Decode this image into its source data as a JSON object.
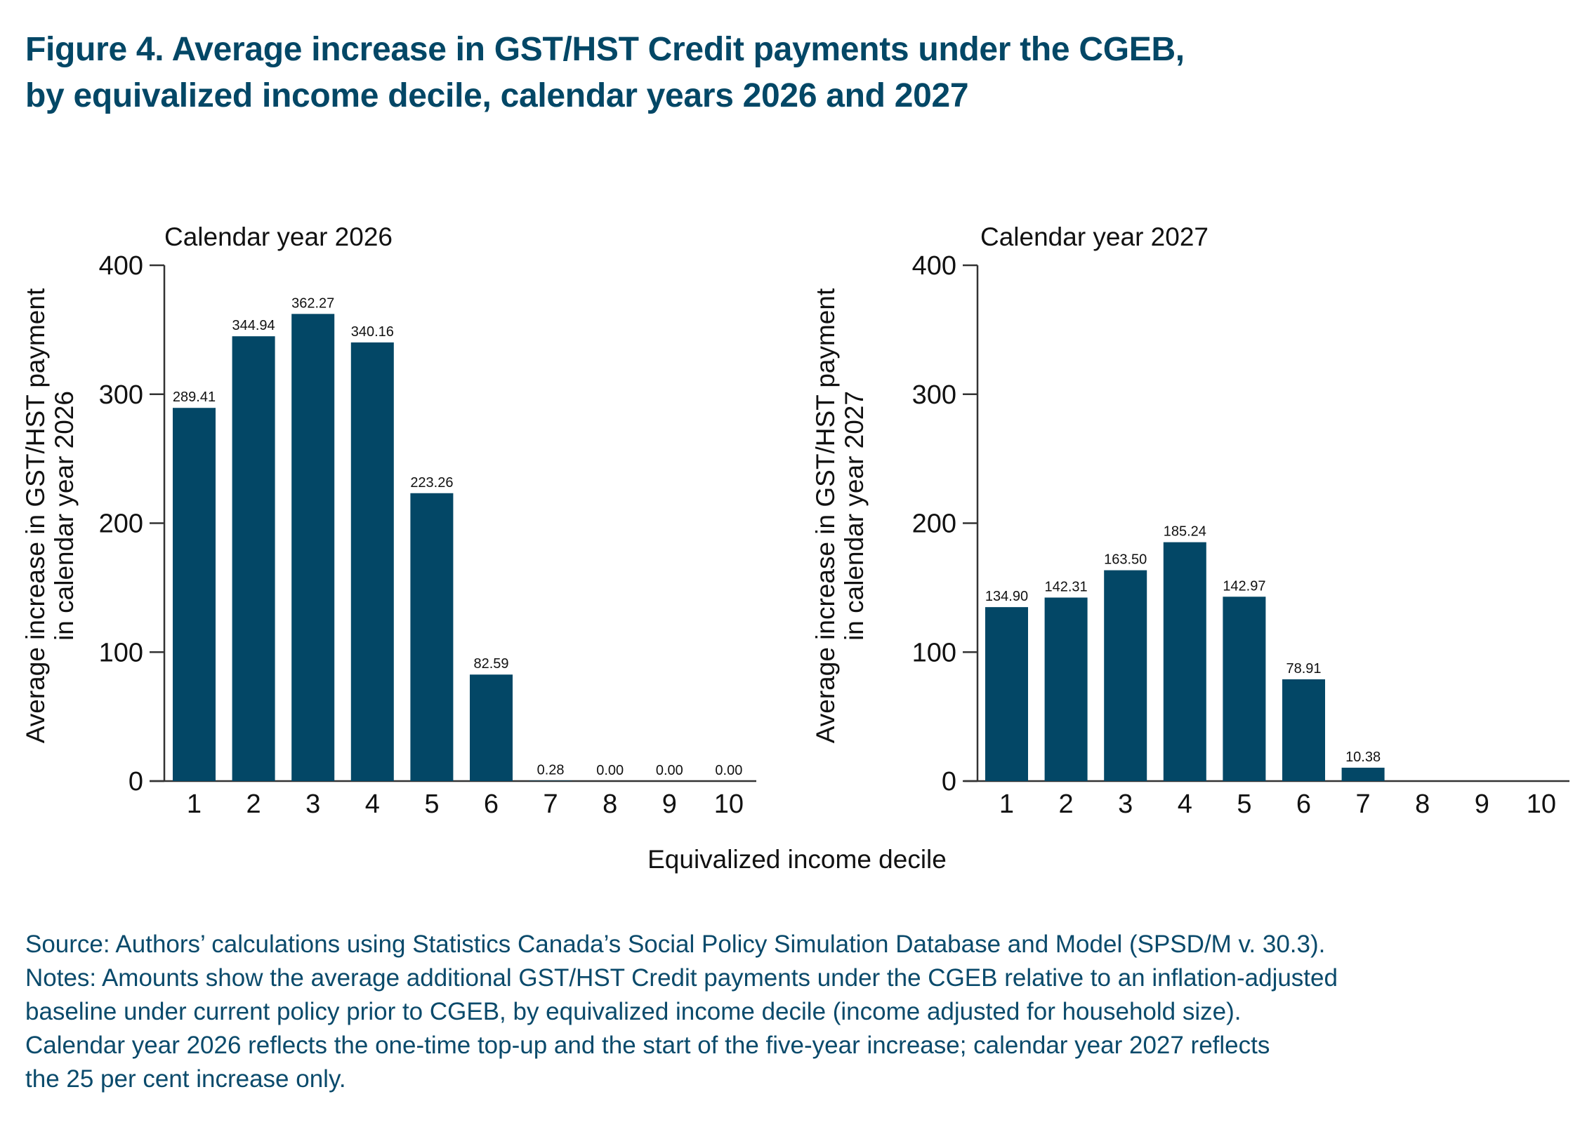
{
  "title": {
    "line1": "Figure 4. Average increase in GST/HST Credit payments under the CGEB,",
    "line2": "by equivalized income decile, calendar years 2026 and 2027"
  },
  "colors": {
    "bar": "#034766",
    "title": "#034766",
    "axis": "#333333",
    "notes": "#0a4a6b"
  },
  "chart_data": [
    {
      "type": "bar",
      "title": "Calendar year 2026",
      "xlabel": "Equivalized income decile",
      "ylabel_line1": "Average increase in GST/HST payment",
      "ylabel_line2": "in calendar year 2026",
      "categories": [
        "1",
        "2",
        "3",
        "4",
        "5",
        "6",
        "7",
        "8",
        "9",
        "10"
      ],
      "values": [
        289.41,
        344.94,
        362.27,
        340.16,
        223.26,
        82.59,
        0.28,
        0.0,
        0.0,
        0.0
      ],
      "value_labels": [
        "289.41",
        "344.94",
        "362.27",
        "340.16",
        "223.26",
        "82.59",
        "0.28",
        "0.00",
        "0.00",
        "0.00"
      ],
      "ylim": [
        0,
        400
      ],
      "yticks": [
        0,
        100,
        200,
        300,
        400
      ],
      "grid": false
    },
    {
      "type": "bar",
      "title": "Calendar year 2027",
      "xlabel": "Equivalized income decile",
      "ylabel_line1": "Average increase in GST/HST payment",
      "ylabel_line2": "in calendar year 2027",
      "categories": [
        "1",
        "2",
        "3",
        "4",
        "5",
        "6",
        "7",
        "8",
        "9",
        "10"
      ],
      "values": [
        134.9,
        142.31,
        163.5,
        185.24,
        142.97,
        78.91,
        10.38,
        0,
        0,
        0
      ],
      "value_labels": [
        "134.90",
        "142.31",
        "163.50",
        "185.24",
        "142.97",
        "78.91",
        "10.38",
        "",
        "",
        ""
      ],
      "ylim": [
        0,
        400
      ],
      "yticks": [
        0,
        100,
        200,
        300,
        400
      ],
      "grid": false
    }
  ],
  "shared_xlabel": "Equivalized income decile",
  "notes": {
    "line1": "Source: Authors’ calculations using Statistics Canada’s Social Policy Simulation Database and Model (SPSD/M v. 30.3).",
    "line2": "Notes: Amounts show the average additional GST/HST Credit payments under the CGEB relative to an inflation-adjusted",
    "line3": "baseline under current policy prior to CGEB, by equivalized income decile (income adjusted for household size).",
    "line4": "Calendar year 2026 reflects the one-time top-up and the start of the five-year increase; calendar year 2027 reflects",
    "line5": "the 25 per cent increase only."
  }
}
